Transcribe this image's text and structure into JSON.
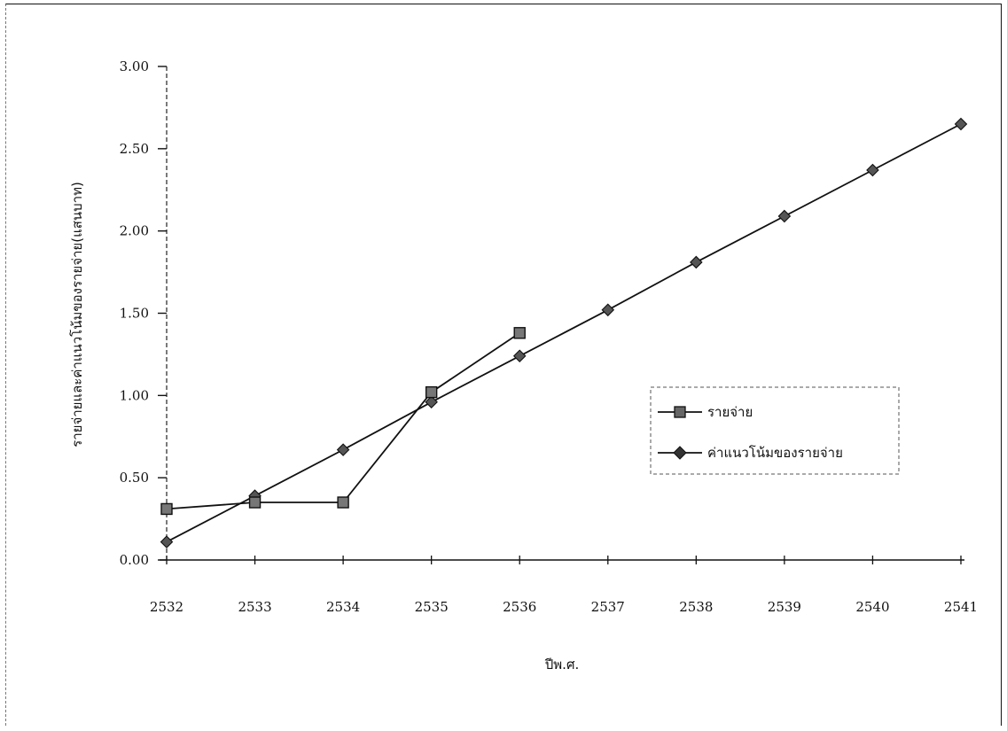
{
  "chart_data": {
    "type": "line",
    "x": [
      "2532",
      "2533",
      "2534",
      "2535",
      "2536",
      "2537",
      "2538",
      "2539",
      "2540",
      "2541"
    ],
    "xlabel": "ปีพ.ศ.",
    "ylabel": "รายจ่ายและค่าแนวโน้มของรายจ่าย(แสนบาท)",
    "ylim": [
      0,
      3
    ],
    "yticks": [
      "0.00",
      "0.50",
      "1.00",
      "1.50",
      "2.00",
      "2.50",
      "3.00"
    ],
    "grid": false,
    "legend_position": "right",
    "series": [
      {
        "name": "รายจ่าย",
        "marker": "square",
        "color": "#111111",
        "values": [
          0.31,
          0.35,
          0.35,
          1.02,
          1.38,
          null,
          null,
          null,
          null,
          null
        ]
      },
      {
        "name": "ค่าแนวโน้มของรายจ่าย",
        "marker": "diamond",
        "color": "#111111",
        "values": [
          0.11,
          0.39,
          0.67,
          0.96,
          1.24,
          1.52,
          1.81,
          2.09,
          2.37,
          2.65
        ]
      }
    ]
  }
}
